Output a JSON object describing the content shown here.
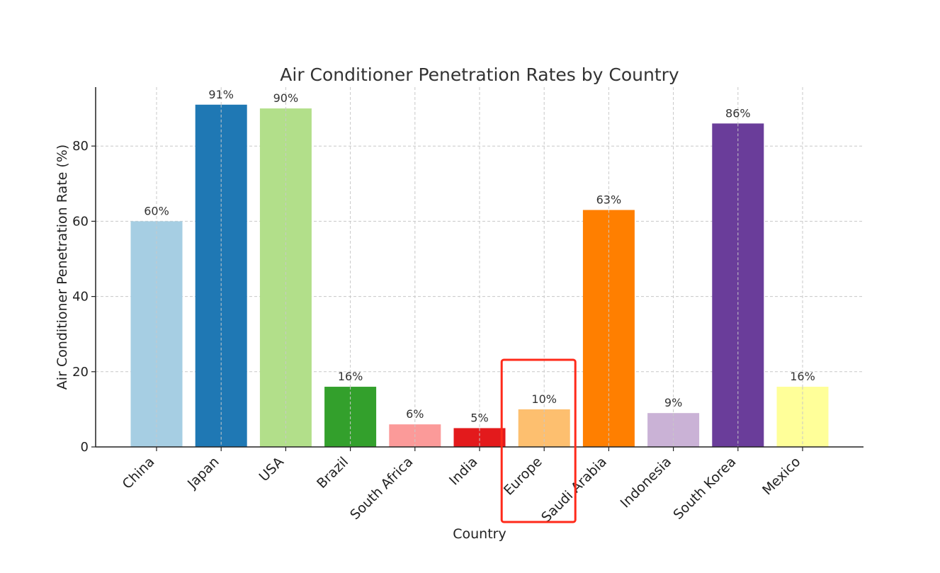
{
  "chart_data": {
    "type": "bar",
    "title": "Air Conditioner Penetration Rates by Country",
    "xlabel": "Country",
    "ylabel": "Air Conditioner Penetration Rate (%)",
    "ylim": [
      0,
      95
    ],
    "yticks": [
      0,
      20,
      40,
      60,
      80
    ],
    "grid": true,
    "categories": [
      "China",
      "Japan",
      "USA",
      "Brazil",
      "South Africa",
      "India",
      "Europe",
      "Saudi Arabia",
      "Indonesia",
      "South Korea",
      "Mexico"
    ],
    "values": [
      60,
      91,
      90,
      16,
      6,
      5,
      10,
      63,
      9,
      86,
      16
    ],
    "value_labels": [
      "60%",
      "91%",
      "90%",
      "16%",
      "6%",
      "5%",
      "10%",
      "63%",
      "9%",
      "86%",
      "16%"
    ],
    "colors": [
      "#a6cee3",
      "#1f78b4",
      "#b2df8a",
      "#33a02c",
      "#fb9a99",
      "#e31a1c",
      "#fdbf6f",
      "#ff7f00",
      "#cab2d6",
      "#6a3d9a",
      "#ffff99"
    ],
    "highlight": {
      "category": "Europe",
      "color": "#ff2a1a"
    }
  }
}
